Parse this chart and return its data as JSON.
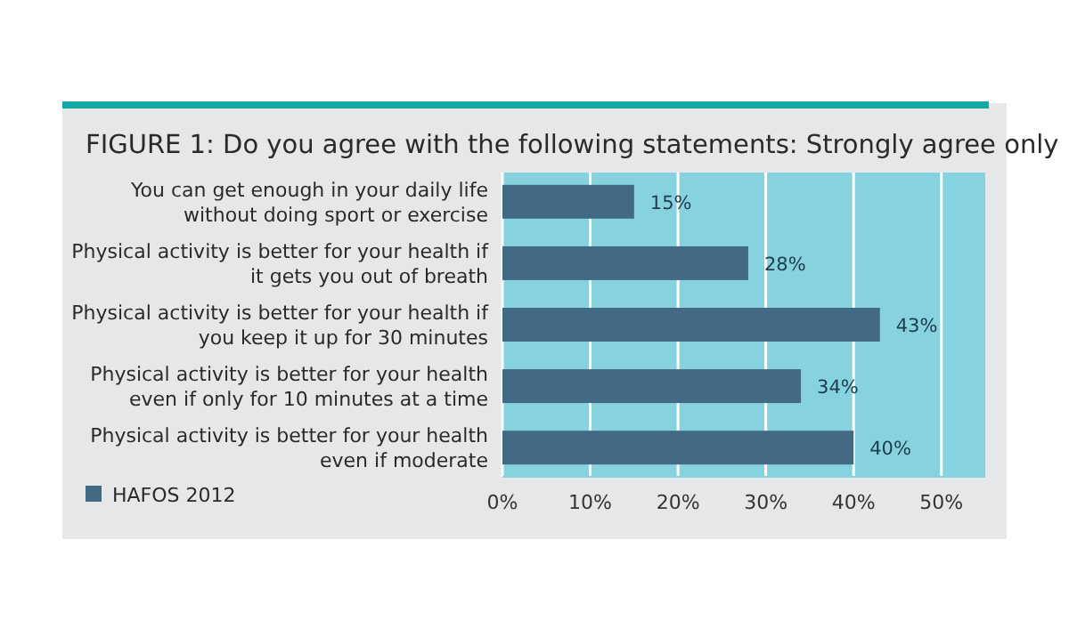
{
  "chart_data": {
    "type": "bar",
    "orientation": "horizontal",
    "title": "FIGURE 1: Do you agree with the following statements: Strongly agree only",
    "categories": [
      "You can get enough in your daily life without doing sport or exercise",
      "Physical activity is better for your health if it gets you out of breath",
      "Physical activity is better for your health if you keep it up for 30 minutes",
      "Physical activity is better for your health even if only for 10 minutes at a time",
      "Physical activity is better for your health even if moderate"
    ],
    "series": [
      {
        "name": "HAFOS 2012",
        "color": "#436a85",
        "values": [
          15,
          28,
          43,
          34,
          40
        ],
        "value_labels": [
          "15%",
          "28%",
          "43%",
          "34%",
          "40%"
        ]
      }
    ],
    "xlim": [
      0,
      55
    ],
    "xticks": [
      {
        "value": 0,
        "label": "0%"
      },
      {
        "value": 10,
        "label": "10%"
      },
      {
        "value": 20,
        "label": "20%"
      },
      {
        "value": 30,
        "label": "30%"
      },
      {
        "value": 40,
        "label": "40%"
      },
      {
        "value": 50,
        "label": "50%"
      }
    ],
    "grid": "x",
    "legend": "bottom left"
  }
}
